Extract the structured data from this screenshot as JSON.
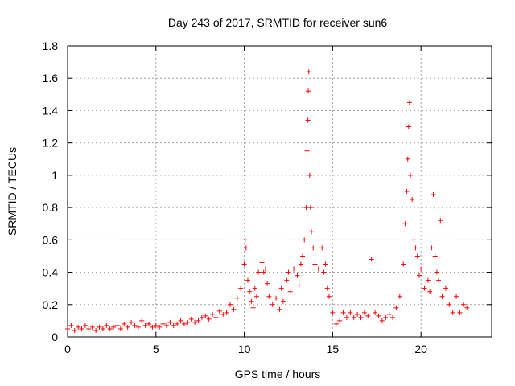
{
  "chart_data": {
    "type": "scatter",
    "title": "Day 243 of 2017, SRMTID for receiver sun6",
    "xlabel": "GPS time / hours",
    "ylabel": "SRMTID / TECUs",
    "xlim": [
      0,
      24
    ],
    "ylim": [
      0,
      1.8
    ],
    "xticks": [
      0,
      5,
      10,
      15,
      20
    ],
    "yticks": [
      0,
      0.2,
      0.4,
      0.6,
      0.8,
      1,
      1.2,
      1.4,
      1.6,
      1.8
    ],
    "xtick_labels": [
      "0",
      "5",
      "10",
      "15",
      "20"
    ],
    "ytick_labels": [
      "0",
      "0.2",
      "0.4",
      "0.6",
      "0.8",
      "1",
      "1.2",
      "1.4",
      "1.6",
      "1.8"
    ],
    "grid": true,
    "marker": "+",
    "color": "#ff0000",
    "series": [
      {
        "name": "SRMTID",
        "points": [
          [
            0.0,
            0.05
          ],
          [
            0.2,
            0.07
          ],
          [
            0.4,
            0.04
          ],
          [
            0.6,
            0.06
          ],
          [
            0.8,
            0.05
          ],
          [
            1.0,
            0.07
          ],
          [
            1.2,
            0.05
          ],
          [
            1.4,
            0.06
          ],
          [
            1.6,
            0.04
          ],
          [
            1.8,
            0.06
          ],
          [
            2.0,
            0.05
          ],
          [
            2.2,
            0.07
          ],
          [
            2.4,
            0.05
          ],
          [
            2.6,
            0.06
          ],
          [
            2.8,
            0.07
          ],
          [
            3.0,
            0.05
          ],
          [
            3.2,
            0.08
          ],
          [
            3.4,
            0.06
          ],
          [
            3.6,
            0.09
          ],
          [
            3.8,
            0.07
          ],
          [
            4.0,
            0.06
          ],
          [
            4.2,
            0.1
          ],
          [
            4.4,
            0.07
          ],
          [
            4.6,
            0.08
          ],
          [
            4.8,
            0.06
          ],
          [
            5.0,
            0.07
          ],
          [
            5.2,
            0.06
          ],
          [
            5.4,
            0.08
          ],
          [
            5.6,
            0.07
          ],
          [
            5.8,
            0.09
          ],
          [
            6.0,
            0.07
          ],
          [
            6.2,
            0.08
          ],
          [
            6.4,
            0.1
          ],
          [
            6.6,
            0.08
          ],
          [
            6.8,
            0.09
          ],
          [
            7.0,
            0.11
          ],
          [
            7.2,
            0.09
          ],
          [
            7.4,
            0.1
          ],
          [
            7.6,
            0.12
          ],
          [
            7.8,
            0.13
          ],
          [
            8.0,
            0.11
          ],
          [
            8.2,
            0.14
          ],
          [
            8.4,
            0.12
          ],
          [
            8.6,
            0.16
          ],
          [
            8.8,
            0.14
          ],
          [
            9.0,
            0.15
          ],
          [
            9.2,
            0.2
          ],
          [
            9.4,
            0.17
          ],
          [
            9.6,
            0.24
          ],
          [
            9.8,
            0.3
          ],
          [
            10.0,
            0.45
          ],
          [
            10.05,
            0.6
          ],
          [
            10.1,
            0.55
          ],
          [
            10.2,
            0.35
          ],
          [
            10.3,
            0.28
          ],
          [
            10.4,
            0.22
          ],
          [
            10.5,
            0.18
          ],
          [
            10.6,
            0.3
          ],
          [
            10.7,
            0.25
          ],
          [
            10.8,
            0.4
          ],
          [
            11.0,
            0.46
          ],
          [
            11.1,
            0.4
          ],
          [
            11.2,
            0.42
          ],
          [
            11.3,
            0.33
          ],
          [
            11.4,
            0.25
          ],
          [
            11.6,
            0.2
          ],
          [
            11.8,
            0.24
          ],
          [
            12.0,
            0.17
          ],
          [
            12.1,
            0.3
          ],
          [
            12.2,
            0.22
          ],
          [
            12.4,
            0.35
          ],
          [
            12.5,
            0.4
          ],
          [
            12.6,
            0.28
          ],
          [
            12.8,
            0.42
          ],
          [
            13.0,
            0.38
          ],
          [
            13.1,
            0.32
          ],
          [
            13.2,
            0.45
          ],
          [
            13.3,
            0.5
          ],
          [
            13.4,
            0.6
          ],
          [
            13.5,
            0.8
          ],
          [
            13.55,
            1.15
          ],
          [
            13.6,
            1.34
          ],
          [
            13.62,
            1.52
          ],
          [
            13.65,
            1.64
          ],
          [
            13.7,
            1.0
          ],
          [
            13.75,
            0.8
          ],
          [
            13.8,
            0.65
          ],
          [
            13.9,
            0.55
          ],
          [
            14.0,
            0.45
          ],
          [
            14.2,
            0.42
          ],
          [
            14.4,
            0.55
          ],
          [
            14.5,
            0.4
          ],
          [
            14.6,
            0.45
          ],
          [
            14.7,
            0.3
          ],
          [
            14.8,
            0.25
          ],
          [
            15.0,
            0.15
          ],
          [
            15.2,
            0.08
          ],
          [
            15.4,
            0.1
          ],
          [
            15.6,
            0.15
          ],
          [
            15.8,
            0.12
          ],
          [
            16.0,
            0.15
          ],
          [
            16.2,
            0.12
          ],
          [
            16.4,
            0.14
          ],
          [
            16.6,
            0.12
          ],
          [
            16.8,
            0.15
          ],
          [
            17.0,
            0.13
          ],
          [
            17.2,
            0.48
          ],
          [
            17.4,
            0.15
          ],
          [
            17.6,
            0.13
          ],
          [
            17.8,
            0.1
          ],
          [
            18.0,
            0.12
          ],
          [
            18.2,
            0.14
          ],
          [
            18.4,
            0.12
          ],
          [
            18.6,
            0.18
          ],
          [
            18.8,
            0.25
          ],
          [
            19.0,
            0.45
          ],
          [
            19.1,
            0.7
          ],
          [
            19.2,
            0.9
          ],
          [
            19.25,
            1.1
          ],
          [
            19.3,
            1.3
          ],
          [
            19.35,
            1.45
          ],
          [
            19.4,
            1.0
          ],
          [
            19.5,
            0.85
          ],
          [
            19.6,
            0.6
          ],
          [
            19.7,
            0.55
          ],
          [
            19.8,
            0.5
          ],
          [
            19.9,
            0.38
          ],
          [
            20.0,
            0.42
          ],
          [
            20.2,
            0.3
          ],
          [
            20.4,
            0.35
          ],
          [
            20.5,
            0.28
          ],
          [
            20.6,
            0.55
          ],
          [
            20.7,
            0.88
          ],
          [
            20.8,
            0.5
          ],
          [
            20.9,
            0.4
          ],
          [
            21.0,
            0.35
          ],
          [
            21.1,
            0.72
          ],
          [
            21.2,
            0.25
          ],
          [
            21.4,
            0.3
          ],
          [
            21.6,
            0.2
          ],
          [
            21.8,
            0.15
          ],
          [
            22.0,
            0.25
          ],
          [
            22.2,
            0.15
          ],
          [
            22.4,
            0.2
          ],
          [
            22.6,
            0.18
          ]
        ]
      }
    ]
  }
}
